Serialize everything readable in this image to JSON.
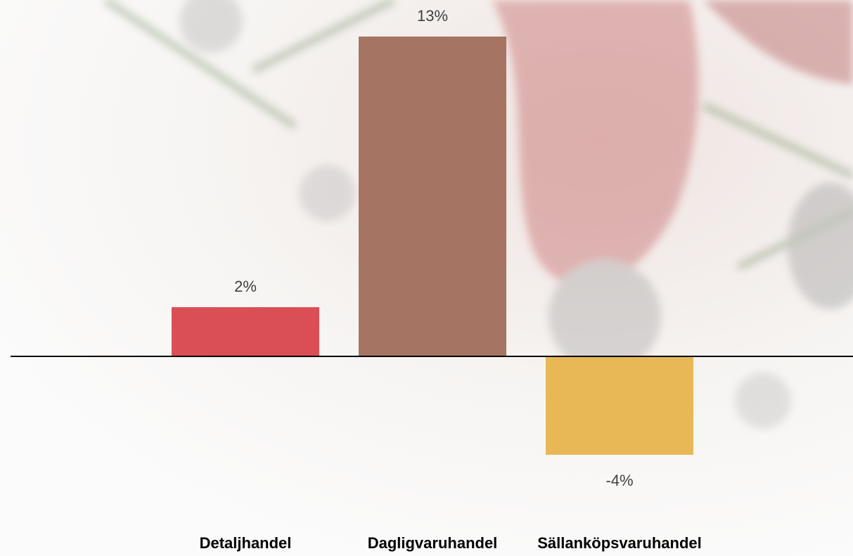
{
  "chart_data": {
    "type": "bar",
    "categories": [
      "Detaljhandel",
      "Dagligvaruhandel",
      "Sällanköpsvaruhandel"
    ],
    "values": [
      2,
      13,
      -4
    ],
    "value_labels": [
      "2%",
      "13%",
      "-4%"
    ],
    "colors": [
      "#d94f55",
      "#a57462",
      "#e9b856"
    ]
  }
}
